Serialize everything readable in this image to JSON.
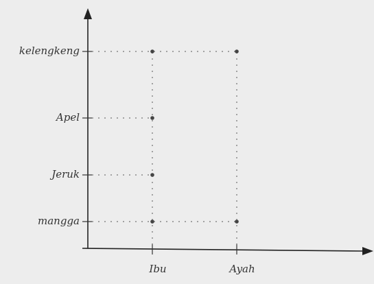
{
  "chart_data": {
    "type": "scatter",
    "x_categories": [
      "Ibu",
      "Ayah"
    ],
    "y_categories": [
      "mangga",
      "Jeruk",
      "Apel",
      "kelengkeng"
    ],
    "points": [
      {
        "x": "Ibu",
        "y": "mangga"
      },
      {
        "x": "Ibu",
        "y": "Jeruk"
      },
      {
        "x": "Ibu",
        "y": "Apel"
      },
      {
        "x": "Ibu",
        "y": "kelengkeng"
      },
      {
        "x": "Ayah",
        "y": "mangga"
      },
      {
        "x": "Ayah",
        "y": "kelengkeng"
      }
    ]
  }
}
